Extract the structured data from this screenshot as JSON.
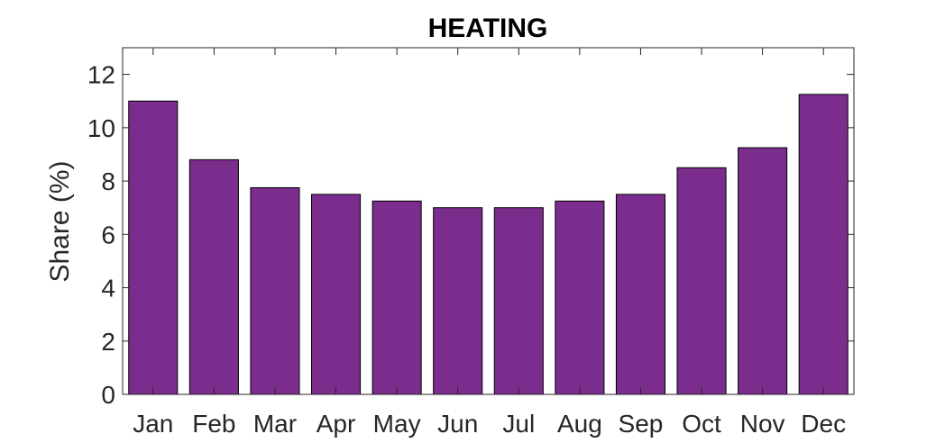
{
  "chart_data": {
    "type": "bar",
    "title": "HEATING",
    "xlabel": "",
    "ylabel": "Share (%)",
    "categories": [
      "Jan",
      "Feb",
      "Mar",
      "Apr",
      "May",
      "Jun",
      "Jul",
      "Aug",
      "Sep",
      "Oct",
      "Nov",
      "Dec"
    ],
    "values": [
      11.0,
      8.8,
      7.75,
      7.5,
      7.25,
      7.0,
      7.0,
      7.25,
      7.5,
      8.5,
      9.25,
      11.25
    ],
    "ylim": [
      0,
      13
    ],
    "yticks": [
      0,
      2,
      4,
      6,
      8,
      10,
      12
    ],
    "grid": false,
    "bar_color": "#7b2d8e",
    "edge_color": "#000000"
  }
}
